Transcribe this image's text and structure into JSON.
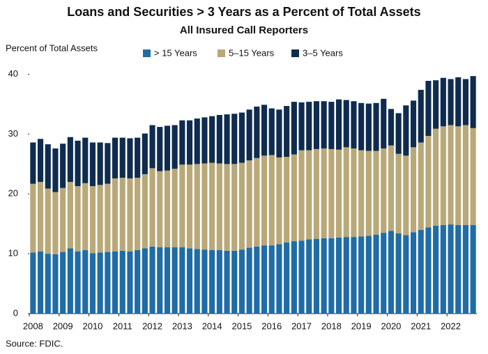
{
  "chart_data": {
    "type": "stacked_bar",
    "title": "Loans and Securities > 3 Years as a Percent of Total Assets",
    "subtitle": "All Insured Call Reporters",
    "y_label": "Percent of Total Assets",
    "source": "Source: FDIC.",
    "categories": [
      "2008",
      null,
      null,
      null,
      "2009",
      null,
      null,
      null,
      "2010",
      null,
      null,
      null,
      "2011",
      null,
      null,
      null,
      "2012",
      null,
      null,
      null,
      "2013",
      null,
      null,
      null,
      "2014",
      null,
      null,
      null,
      "2015",
      null,
      null,
      null,
      "2016",
      null,
      null,
      null,
      "2017",
      null,
      null,
      null,
      "2018",
      null,
      null,
      null,
      "2019",
      null,
      null,
      null,
      "2020",
      null,
      null,
      null,
      "2021",
      null,
      null,
      null,
      "2022",
      null,
      null,
      null
    ],
    "series": [
      {
        "name": "> 15 Years",
        "color": "#1f6ca6",
        "values": [
          10.2,
          10.4,
          10.0,
          9.9,
          10.3,
          10.9,
          10.4,
          10.6,
          10.1,
          10.2,
          10.3,
          10.4,
          10.5,
          10.4,
          10.6,
          10.9,
          11.2,
          11.1,
          11.1,
          11.1,
          11.1,
          10.9,
          10.8,
          10.7,
          10.6,
          10.6,
          10.5,
          10.5,
          10.7,
          11.0,
          11.2,
          11.4,
          11.4,
          11.6,
          11.9,
          12.1,
          12.2,
          12.4,
          12.5,
          12.6,
          12.6,
          12.7,
          12.8,
          12.8,
          12.9,
          13.0,
          13.2,
          13.5,
          13.8,
          13.4,
          13.1,
          13.6,
          14.0,
          14.4,
          14.7,
          14.8,
          14.9,
          14.8,
          14.8,
          14.8
        ]
      },
      {
        "name": "5–15 Years",
        "color": "#b9a878",
        "values": [
          11.5,
          11.6,
          10.9,
          10.4,
          10.7,
          11.1,
          10.9,
          11.2,
          11.2,
          11.3,
          11.4,
          12.2,
          12.2,
          12.2,
          12.1,
          12.4,
          13.1,
          12.7,
          12.8,
          13.1,
          13.8,
          14.0,
          14.2,
          14.4,
          14.6,
          14.5,
          14.5,
          14.5,
          14.5,
          14.6,
          14.8,
          15.0,
          15.1,
          14.5,
          14.3,
          14.5,
          15.1,
          14.9,
          15.0,
          15.0,
          14.9,
          14.7,
          15.0,
          14.8,
          14.4,
          14.2,
          14.0,
          14.1,
          14.3,
          13.3,
          13.3,
          14.2,
          14.6,
          15.3,
          16.2,
          16.5,
          16.6,
          16.5,
          16.7,
          16.2
        ]
      },
      {
        "name": "3–5 Years",
        "color": "#0f2c4f",
        "values": [
          6.9,
          7.2,
          7.4,
          7.3,
          7.4,
          7.5,
          7.6,
          7.6,
          7.3,
          7.1,
          6.8,
          6.8,
          6.7,
          6.7,
          6.7,
          6.8,
          7.2,
          7.4,
          7.5,
          7.3,
          7.4,
          7.4,
          7.6,
          7.7,
          7.8,
          8.1,
          8.3,
          8.4,
          8.4,
          8.5,
          8.6,
          8.5,
          7.8,
          8.0,
          8.5,
          8.8,
          8.0,
          8.1,
          8.0,
          7.9,
          7.9,
          8.4,
          7.9,
          7.9,
          7.9,
          7.9,
          8.0,
          8.3,
          6.1,
          6.8,
          8.4,
          7.8,
          8.8,
          9.2,
          8.1,
          8.1,
          7.7,
          8.2,
          7.7,
          8.7
        ]
      }
    ],
    "ylim": [
      0,
      41
    ],
    "yticks": [
      0,
      10,
      20,
      30,
      40
    ],
    "grid": false
  }
}
